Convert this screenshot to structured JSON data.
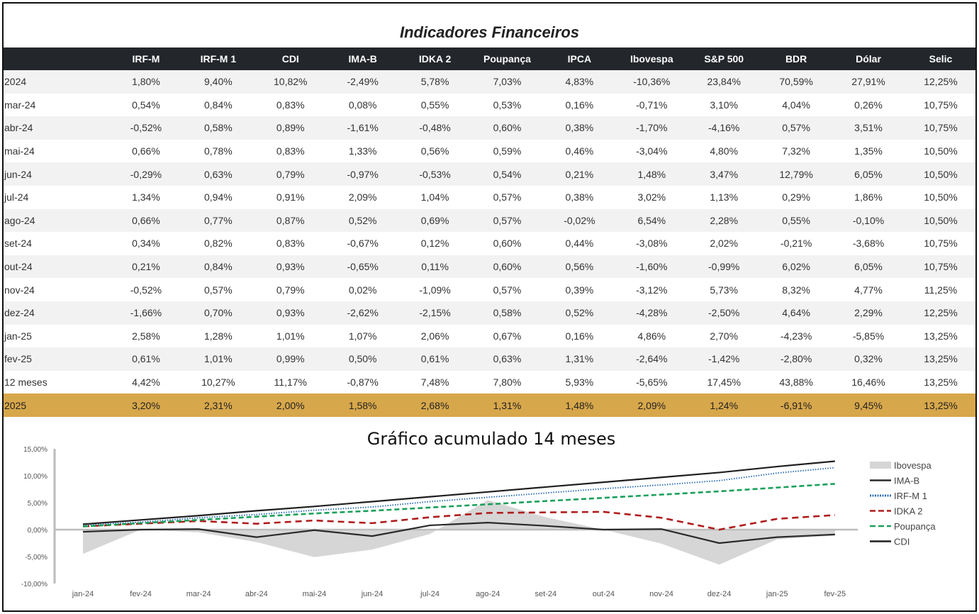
{
  "title": "Indicadores Financeiros",
  "table": {
    "headers": [
      "",
      "IRF-M",
      "IRF-M 1",
      "CDI",
      "IMA-B",
      "IDKA 2",
      "Poupança",
      "IPCA",
      "Ibovespa",
      "S&P 500",
      "BDR",
      "Dólar",
      "Selic"
    ],
    "rows": [
      [
        "2024",
        "1,80%",
        "9,40%",
        "10,82%",
        "-2,49%",
        "5,78%",
        "7,03%",
        "4,83%",
        "-10,36%",
        "23,84%",
        "70,59%",
        "27,91%",
        "12,25%"
      ],
      [
        "mar-24",
        "0,54%",
        "0,84%",
        "0,83%",
        "0,08%",
        "0,55%",
        "0,53%",
        "0,16%",
        "-0,71%",
        "3,10%",
        "4,04%",
        "0,26%",
        "10,75%"
      ],
      [
        "abr-24",
        "-0,52%",
        "0,58%",
        "0,89%",
        "-1,61%",
        "-0,48%",
        "0,60%",
        "0,38%",
        "-1,70%",
        "-4,16%",
        "0,57%",
        "3,51%",
        "10,75%"
      ],
      [
        "mai-24",
        "0,66%",
        "0,78%",
        "0,83%",
        "1,33%",
        "0,56%",
        "0,59%",
        "0,46%",
        "-3,04%",
        "4,80%",
        "7,32%",
        "1,35%",
        "10,50%"
      ],
      [
        "jun-24",
        "-0,29%",
        "0,63%",
        "0,79%",
        "-0,97%",
        "-0,53%",
        "0,54%",
        "0,21%",
        "1,48%",
        "3,47%",
        "12,79%",
        "6,05%",
        "10,50%"
      ],
      [
        "jul-24",
        "1,34%",
        "0,94%",
        "0,91%",
        "2,09%",
        "1,04%",
        "0,57%",
        "0,38%",
        "3,02%",
        "1,13%",
        "0,29%",
        "1,86%",
        "10,50%"
      ],
      [
        "ago-24",
        "0,66%",
        "0,77%",
        "0,87%",
        "0,52%",
        "0,69%",
        "0,57%",
        "-0,02%",
        "6,54%",
        "2,28%",
        "0,55%",
        "-0,10%",
        "10,50%"
      ],
      [
        "set-24",
        "0,34%",
        "0,82%",
        "0,83%",
        "-0,67%",
        "0,12%",
        "0,60%",
        "0,44%",
        "-3,08%",
        "2,02%",
        "-0,21%",
        "-3,68%",
        "10,75%"
      ],
      [
        "out-24",
        "0,21%",
        "0,84%",
        "0,93%",
        "-0,65%",
        "0,11%",
        "0,60%",
        "0,56%",
        "-1,60%",
        "-0,99%",
        "6,02%",
        "6,05%",
        "10,75%"
      ],
      [
        "nov-24",
        "-0,52%",
        "0,57%",
        "0,79%",
        "0,02%",
        "-1,09%",
        "0,57%",
        "0,39%",
        "-3,12%",
        "5,73%",
        "8,32%",
        "4,77%",
        "11,25%"
      ],
      [
        "dez-24",
        "-1,66%",
        "0,70%",
        "0,93%",
        "-2,62%",
        "-2,15%",
        "0,58%",
        "0,52%",
        "-4,28%",
        "-2,50%",
        "4,64%",
        "2,29%",
        "12,25%"
      ],
      [
        "jan-25",
        "2,58%",
        "1,28%",
        "1,01%",
        "1,07%",
        "2,06%",
        "0,67%",
        "0,16%",
        "4,86%",
        "2,70%",
        "-4,23%",
        "-5,85%",
        "13,25%"
      ],
      [
        "fev-25",
        "0,61%",
        "1,01%",
        "0,99%",
        "0,50%",
        "0,61%",
        "0,63%",
        "1,31%",
        "-2,64%",
        "-1,42%",
        "-2,80%",
        "0,32%",
        "13,25%"
      ],
      [
        "12 meses",
        "4,42%",
        "10,27%",
        "11,17%",
        "-0,87%",
        "7,48%",
        "7,80%",
        "5,93%",
        "-5,65%",
        "17,45%",
        "43,88%",
        "16,46%",
        "13,25%"
      ],
      [
        "2025",
        "3,20%",
        "2,31%",
        "2,00%",
        "1,58%",
        "2,68%",
        "1,31%",
        "1,48%",
        "2,09%",
        "1,24%",
        "-6,91%",
        "9,45%",
        "13,25%"
      ]
    ],
    "highlight_row_label": "2025",
    "highlight_color": "#d7a74b",
    "header_bg": "#23262b"
  },
  "chart_data": {
    "type": "line",
    "title": "Gráfico acumulado 14 meses",
    "categories": [
      "jan-24",
      "fev-24",
      "mar-24",
      "abr-24",
      "mai-24",
      "jun-24",
      "jul-24",
      "ago-24",
      "set-24",
      "out-24",
      "nov-24",
      "dez-24",
      "jan-25",
      "fev-25"
    ],
    "ylim": [
      -10,
      15
    ],
    "yticks": [
      "15,00%",
      "10,00%",
      "5,00%",
      "0,00%",
      "-5,00%",
      "-10,00%"
    ],
    "ytick_values": [
      15,
      10,
      5,
      0,
      -5,
      -10
    ],
    "legend_position": "right",
    "series": [
      {
        "name": "Ibovespa",
        "style": "area",
        "color": "#d6d6d6",
        "values": [
          -4.5,
          0.0,
          -0.5,
          -2.3,
          -5.1,
          -3.7,
          -0.8,
          5.5,
          2.3,
          0.0,
          -2.6,
          -6.5,
          -1.8,
          -1.1
        ]
      },
      {
        "name": "IMA-B",
        "style": "solid",
        "color": "#2a2a2a",
        "values": [
          -0.4,
          0.0,
          0.1,
          -1.4,
          -0.1,
          -1.2,
          0.8,
          1.3,
          0.7,
          0.0,
          0.1,
          -2.5,
          -1.4,
          -0.9
        ]
      },
      {
        "name": "IRF-M 1",
        "style": "dotted",
        "color": "#2e6fb5",
        "values": [
          0.8,
          1.4,
          2.2,
          2.8,
          3.6,
          4.2,
          5.2,
          6.0,
          6.8,
          7.6,
          8.3,
          9.1,
          10.5,
          11.5
        ]
      },
      {
        "name": "IDKA 2",
        "style": "dashed",
        "color": "#b01c1c",
        "values": [
          0.6,
          1.1,
          1.6,
          1.1,
          1.7,
          1.2,
          2.3,
          3.1,
          3.2,
          3.3,
          2.2,
          0.0,
          2.0,
          2.7
        ]
      },
      {
        "name": "Poupança",
        "style": "dashed",
        "color": "#1aa05a",
        "values": [
          0.6,
          1.2,
          1.8,
          2.4,
          3.0,
          3.5,
          4.1,
          4.7,
          5.3,
          5.9,
          6.5,
          7.1,
          7.8,
          8.5
        ]
      },
      {
        "name": "CDI",
        "style": "solid",
        "color": "#1f1f1f",
        "values": [
          1.0,
          1.8,
          2.6,
          3.5,
          4.3,
          5.2,
          6.1,
          7.0,
          7.9,
          8.8,
          9.7,
          10.6,
          11.7,
          12.7
        ]
      }
    ]
  }
}
